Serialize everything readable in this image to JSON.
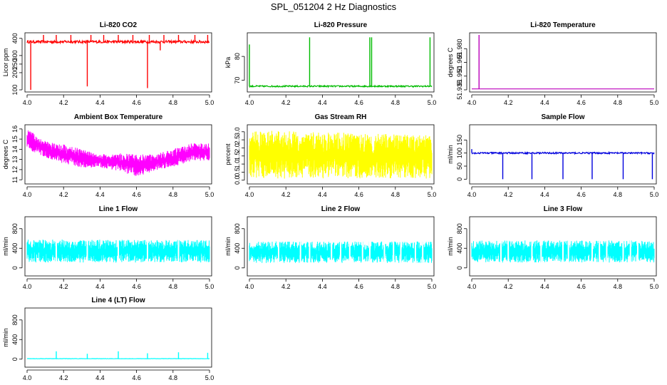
{
  "page_title": "SPL_051204  2 Hz Diagnostics",
  "chart_data": [
    {
      "type": "line",
      "title": "Li-820 CO2",
      "xlabel": "",
      "ylabel": "Licor ppm",
      "color": "#ff0000",
      "xlim": [
        4.0,
        5.0
      ],
      "ylim": [
        100,
        420
      ],
      "x_ticks": [
        "4.0",
        "4.2",
        "4.4",
        "4.6",
        "4.8",
        "5.0"
      ],
      "y_ticks": [
        100,
        200,
        250,
        300,
        400
      ],
      "y_tick_labels": [
        "100",
        "200",
        "250",
        "300",
        "400"
      ],
      "baseline": 380,
      "noise": 8,
      "spikes": [
        [
          4.02,
          100
        ],
        [
          4.04,
          375
        ],
        [
          4.09,
          420
        ],
        [
          4.16,
          420
        ],
        [
          4.24,
          420
        ],
        [
          4.33,
          120
        ],
        [
          4.35,
          420
        ],
        [
          4.42,
          420
        ],
        [
          4.5,
          420
        ],
        [
          4.58,
          420
        ],
        [
          4.66,
          110
        ],
        [
          4.67,
          420
        ],
        [
          4.73,
          330
        ],
        [
          4.75,
          420
        ],
        [
          4.83,
          420
        ],
        [
          4.92,
          420
        ],
        [
          4.99,
          420
        ]
      ]
    },
    {
      "type": "line",
      "title": "Li-820 Pressure",
      "xlabel": "",
      "ylabel": "kPa",
      "color": "#00bb00",
      "xlim": [
        4.0,
        5.0
      ],
      "ylim": [
        66,
        89
      ],
      "x_ticks": [
        "4.0",
        "4.2",
        "4.4",
        "4.6",
        "4.8",
        "5.0"
      ],
      "y_ticks": [
        70,
        80
      ],
      "y_tick_labels": [
        "70",
        "80"
      ],
      "baseline": 67.5,
      "noise": 0.3,
      "spikes": [
        [
          4.0,
          85
        ],
        [
          4.33,
          88
        ],
        [
          4.66,
          88
        ],
        [
          4.67,
          88
        ],
        [
          4.99,
          88
        ]
      ]
    },
    {
      "type": "line",
      "title": "Li-820 Temperature",
      "xlabel": "",
      "ylabel": "degrees C",
      "color": "#bb00bb",
      "xlim": [
        4.0,
        5.0
      ],
      "ylim": [
        51.935,
        51.995
      ],
      "x_ticks": [
        "4.0",
        "4.2",
        "4.4",
        "4.6",
        "4.8",
        "5.0"
      ],
      "y_ticks": [
        51.935,
        51.95,
        51.965,
        51.98
      ],
      "y_tick_labels": [
        "51.935",
        "51.950",
        "51.965",
        "51.980"
      ],
      "baseline": 51.936,
      "noise": 0,
      "spikes": [
        [
          4.04,
          51.995
        ]
      ]
    },
    {
      "type": "line",
      "title": "Ambient Box Temperature",
      "xlabel": "",
      "ylabel": "degrees C",
      "color": "#ff00ff",
      "xlim": [
        4.0,
        5.0
      ],
      "ylim": [
        10.8,
        16.2
      ],
      "x_ticks": [
        "4.0",
        "4.2",
        "4.4",
        "4.6",
        "4.8",
        "5.0"
      ],
      "y_ticks": [
        11,
        12,
        13,
        14,
        15,
        16
      ],
      "y_tick_labels": [
        "11",
        "12",
        "13",
        "14",
        "15",
        "16"
      ],
      "trend_x": [
        4.0,
        4.1,
        4.2,
        4.3,
        4.4,
        4.5,
        4.6,
        4.7,
        4.8,
        4.9,
        5.0
      ],
      "trend_upper": [
        16.0,
        14.8,
        14.5,
        14.0,
        13.5,
        13.6,
        13.5,
        13.5,
        14.0,
        14.6,
        14.6
      ],
      "trend_lower": [
        14.0,
        13.2,
        12.6,
        12.2,
        12.2,
        11.9,
        11.3,
        11.9,
        12.3,
        12.8,
        12.9
      ],
      "spikes": []
    },
    {
      "type": "line",
      "title": "Gas Stream RH",
      "xlabel": "",
      "ylabel": "percent",
      "color": "#ffff00",
      "xlim": [
        4.0,
        5.0
      ],
      "ylim": [
        -0.1,
        3.3
      ],
      "x_ticks": [
        "4.0",
        "4.2",
        "4.4",
        "4.6",
        "4.8",
        "5.0"
      ],
      "y_ticks": [
        0.0,
        0.5,
        1.0,
        1.5,
        2.0,
        2.5,
        3.0
      ],
      "y_tick_labels": [
        "0.0",
        "0.5",
        "1.0",
        "1.5",
        "2.0",
        "2.5",
        "3.0"
      ],
      "trend_x": [
        4.0,
        5.0
      ],
      "trend_upper": [
        3.1,
        2.8
      ],
      "trend_lower": [
        0.1,
        0.1
      ],
      "spikes": []
    },
    {
      "type": "line",
      "title": "Sample Flow",
      "xlabel": "",
      "ylabel": "ml/min",
      "color": "#0000dd",
      "xlim": [
        4.0,
        5.0
      ],
      "ylim": [
        -10,
        200
      ],
      "x_ticks": [
        "4.0",
        "4.2",
        "4.4",
        "4.6",
        "4.8",
        "5.0"
      ],
      "y_ticks": [
        0,
        50,
        100,
        150
      ],
      "y_tick_labels": [
        "0",
        "50",
        "100",
        "150"
      ],
      "baseline": 100,
      "noise": 3,
      "spikes": [
        [
          4.0,
          115
        ],
        [
          4.17,
          0
        ],
        [
          4.33,
          0
        ],
        [
          4.5,
          0
        ],
        [
          4.66,
          0
        ],
        [
          4.83,
          0
        ],
        [
          4.99,
          0
        ]
      ]
    },
    {
      "type": "line",
      "title": "Line 1 Flow",
      "xlabel": "",
      "ylabel": "ml/min",
      "color": "#00ffff",
      "xlim": [
        4.0,
        5.0
      ],
      "ylim": [
        -120,
        1000
      ],
      "x_ticks": [
        "4.0",
        "4.2",
        "4.4",
        "4.6",
        "4.8",
        "5.0"
      ],
      "y_ticks": [
        0,
        400,
        800
      ],
      "y_tick_labels": [
        "0",
        "400",
        "800"
      ],
      "trend_x": [
        4.0,
        5.0
      ],
      "trend_upper": [
        580,
        570
      ],
      "trend_lower": [
        110,
        110
      ],
      "gaps": [
        4.16,
        4.33,
        4.5,
        4.66,
        4.83
      ],
      "spikes": []
    },
    {
      "type": "line",
      "title": "Line 2 Flow",
      "xlabel": "",
      "ylabel": "ml/min",
      "color": "#00ffff",
      "xlim": [
        4.0,
        5.0
      ],
      "ylim": [
        -120,
        1000
      ],
      "x_ticks": [
        "4.0",
        "4.2",
        "4.4",
        "4.6",
        "4.8",
        "5.0"
      ],
      "y_ticks": [
        0,
        400,
        800
      ],
      "y_tick_labels": [
        "0",
        "400",
        "800"
      ],
      "trend_x": [
        4.0,
        5.0
      ],
      "trend_upper": [
        540,
        540
      ],
      "trend_lower": [
        100,
        100
      ],
      "gaps": [
        4.16,
        4.28,
        4.33,
        4.45,
        4.5,
        4.55,
        4.62,
        4.66,
        4.74,
        4.79,
        4.83,
        4.91,
        4.95
      ],
      "spikes": []
    },
    {
      "type": "line",
      "title": "Line 3 Flow",
      "xlabel": "",
      "ylabel": "ml/min",
      "color": "#00ffff",
      "xlim": [
        4.0,
        5.0
      ],
      "ylim": [
        -120,
        1000
      ],
      "x_ticks": [
        "4.0",
        "4.2",
        "4.4",
        "4.6",
        "4.8",
        "5.0"
      ],
      "y_ticks": [
        0,
        400,
        800
      ],
      "y_tick_labels": [
        "0",
        "400",
        "800"
      ],
      "trend_x": [
        4.0,
        5.0
      ],
      "trend_upper": [
        560,
        560
      ],
      "trend_lower": [
        110,
        110
      ],
      "gaps": [
        4.16,
        4.2,
        4.33,
        4.38,
        4.5,
        4.53,
        4.66,
        4.7,
        4.74,
        4.83,
        4.87,
        4.91
      ],
      "spikes": []
    },
    {
      "type": "line",
      "title": "Line 4 (LT) Flow",
      "xlabel": "",
      "ylabel": "ml/min",
      "color": "#00ffff",
      "xlim": [
        4.0,
        5.0
      ],
      "ylim": [
        -120,
        1000
      ],
      "x_ticks": [
        "4.0",
        "4.2",
        "4.4",
        "4.6",
        "4.8",
        "5.0"
      ],
      "y_ticks": [
        0,
        400,
        800
      ],
      "y_tick_labels": [
        "0",
        "400",
        "800"
      ],
      "baseline": 10,
      "noise": 3,
      "spikes": [
        [
          4.16,
          160
        ],
        [
          4.33,
          110
        ],
        [
          4.5,
          160
        ],
        [
          4.66,
          120
        ],
        [
          4.83,
          140
        ],
        [
          4.99,
          130
        ]
      ]
    }
  ]
}
